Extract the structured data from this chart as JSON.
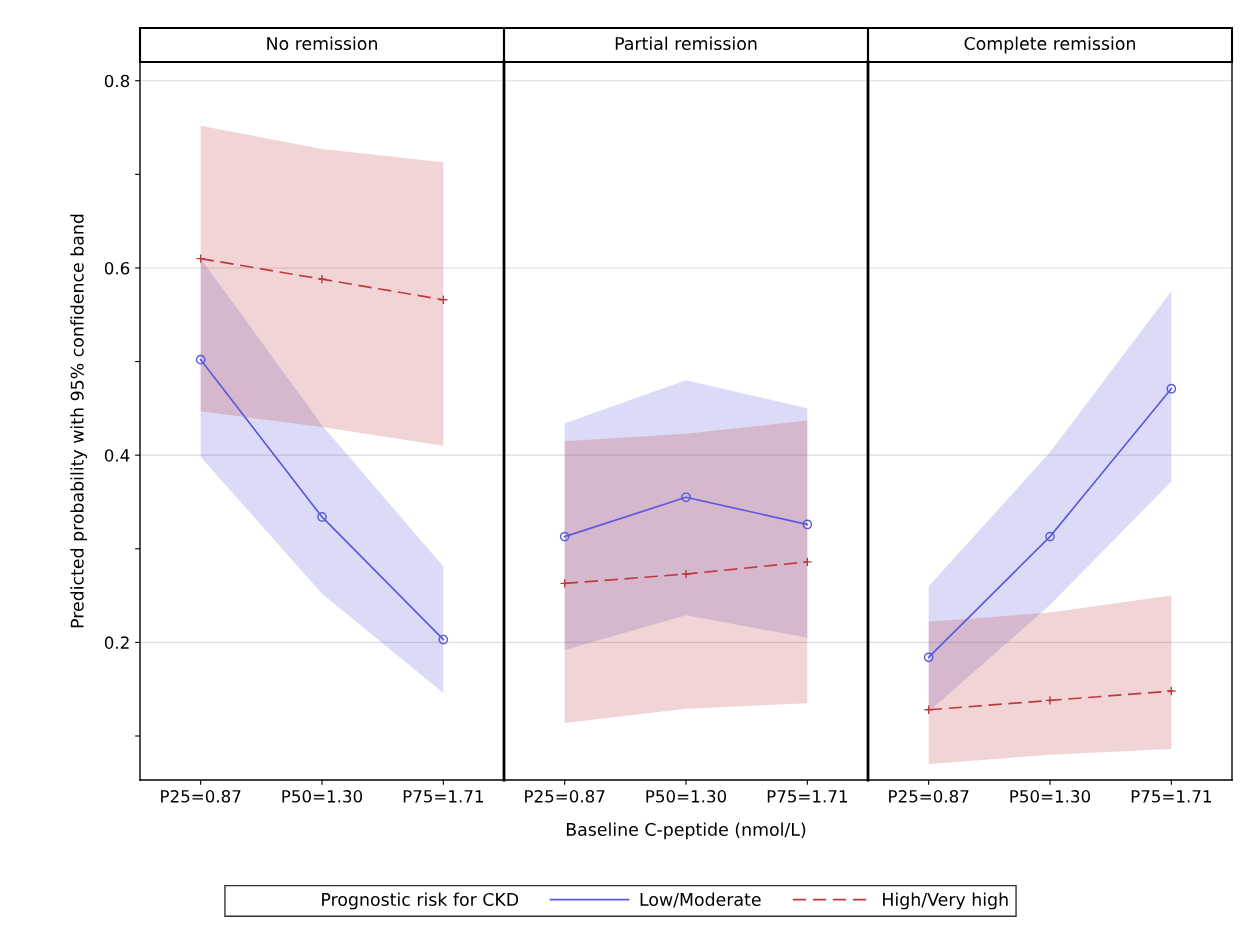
{
  "chart_data": [
    {
      "type": "line",
      "title": "No remission",
      "legend_title": "Prognostic risk for CKD",
      "legend": "bottom",
      "ylabel": "Predicted probability with 95% confidence band",
      "categories": [
        "P25=0.87",
        "P50=1.30",
        "P75=1.71"
      ],
      "ylim": [
        0.053,
        0.82
      ],
      "yticks": [
        {
          "value": 0.1,
          "label": null
        },
        0.2,
        {
          "value": 0.3,
          "label": null
        },
        0.4,
        {
          "value": 0.5,
          "label": null
        },
        0.6,
        {
          "value": 0.7,
          "label": null
        },
        0.8
      ],
      "grid": "y",
      "series": [
        {
          "name": "Low/Moderate",
          "color": "#5a5adc",
          "marker": "circle",
          "line_style": "solid",
          "values": [
            0.502,
            0.334,
            0.203
          ],
          "lower": [
            0.398,
            0.252,
            0.146
          ],
          "upper": [
            0.61,
            0.432,
            0.281
          ]
        },
        {
          "name": "High/Very high",
          "color": "#c0393f",
          "marker": "cross",
          "line_style": "dashed",
          "values": [
            0.61,
            0.588,
            0.566
          ],
          "lower": [
            0.447,
            0.43,
            0.41
          ],
          "upper": [
            0.752,
            0.727,
            0.713
          ]
        }
      ]
    },
    {
      "type": "line",
      "title": "Partial remission",
      "xlabel": "Baseline C-peptide (nmol/L)",
      "tick_labels": "x",
      "categories": [
        "P25=0.87",
        "P50=1.30",
        "P75=1.71"
      ],
      "ylim": [
        0.053,
        0.82
      ],
      "yticks": [
        0.2,
        0.4,
        0.6,
        0.8
      ],
      "grid": "y",
      "series": [
        {
          "name": "Low/Moderate",
          "color": "#5a5adc",
          "marker": "circle",
          "line_style": "solid",
          "values": [
            0.313,
            0.355,
            0.326
          ],
          "lower": [
            0.192,
            0.229,
            0.205
          ],
          "upper": [
            0.434,
            0.48,
            0.45
          ]
        },
        {
          "name": "High/Very high",
          "color": "#c0393f",
          "marker": "cross",
          "line_style": "dashed",
          "values": [
            0.263,
            0.273,
            0.286
          ],
          "lower": [
            0.114,
            0.129,
            0.135
          ],
          "upper": [
            0.415,
            0.423,
            0.437
          ]
        }
      ]
    },
    {
      "type": "line",
      "title": "Complete remission",
      "tick_labels": "x",
      "categories": [
        "P25=0.87",
        "P50=1.30",
        "P75=1.71"
      ],
      "ylim": [
        0.053,
        0.82
      ],
      "yticks": [
        0.2,
        0.4,
        0.6,
        0.8
      ],
      "grid": "y",
      "series": [
        {
          "name": "Low/Moderate",
          "color": "#5a5adc",
          "marker": "circle",
          "line_style": "solid",
          "values": [
            0.184,
            0.313,
            0.471
          ],
          "lower": [
            0.126,
            0.24,
            0.372
          ],
          "upper": [
            0.26,
            0.403,
            0.575
          ]
        },
        {
          "name": "High/Very high",
          "color": "#c0393f",
          "marker": "cross",
          "line_style": "dashed",
          "values": [
            0.128,
            0.138,
            0.148
          ],
          "lower": [
            0.07,
            0.08,
            0.086
          ],
          "upper": [
            0.222,
            0.232,
            0.25
          ]
        }
      ]
    }
  ]
}
